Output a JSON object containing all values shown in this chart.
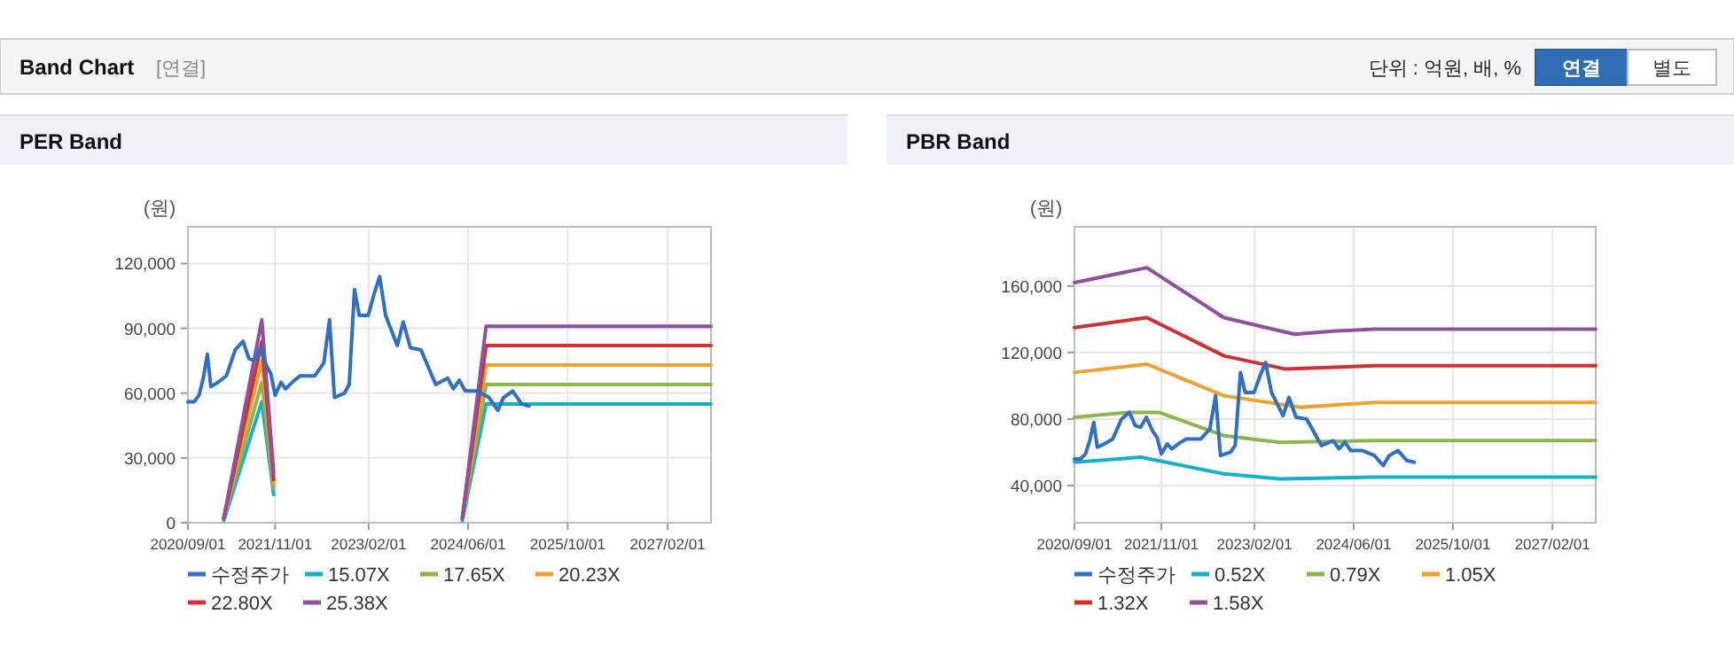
{
  "chart_data": [
    {
      "type": "line",
      "title": "PER Band",
      "ylabel": "(원)",
      "annotations": [
        "Band Chart",
        "[연결]",
        "단위 : 억원, 배, %",
        "연결",
        "별도"
      ],
      "xlim": [
        "2020-09-01",
        "2027-09-01"
      ],
      "ylim": [
        0,
        137000
      ],
      "xticks": [
        {
          "value": "2020-09-01",
          "label": "2020/09/01"
        },
        {
          "value": "2021-11-01",
          "label": "2021/11/01"
        },
        {
          "value": "2023-02-01",
          "label": "2023/02/01"
        },
        {
          "value": "2024-06-01",
          "label": "2024/06/01"
        },
        {
          "value": "2025-10-01",
          "label": "2025/10/01"
        },
        {
          "value": "2027-02-01",
          "label": "2027/02/01"
        }
      ],
      "yticks": [
        0,
        {
          "value": 30000,
          "label": "30,000"
        },
        {
          "value": 60000,
          "label": "60,000"
        },
        {
          "value": 90000,
          "label": "90,000"
        },
        {
          "value": 120000,
          "label": "120,000"
        }
      ],
      "grid": true,
      "legend": "bottom",
      "marker": "none",
      "line_style": "solid",
      "series": [
        {
          "name": "수정주가",
          "color": "#2f6fc6",
          "x": [
            "2020-09-01",
            "2020-10-01",
            "2020-10-25",
            "2020-11-15",
            "2020-12-05",
            "2020-12-22",
            "2021-01-26",
            "2021-03-08",
            "2021-04-20",
            "2021-05-28",
            "2021-06-26",
            "2021-07-22",
            "2021-08-20",
            "2021-09-18",
            "2021-10-11",
            "2021-11-01",
            "2021-11-30",
            "2021-12-22",
            "2022-02-04",
            "2022-03-03",
            "2022-05-14",
            "2022-06-27",
            "2022-07-25",
            "2022-08-18",
            "2022-10-06",
            "2022-10-29",
            "2022-11-24",
            "2022-12-17",
            "2023-01-30",
            "2023-02-28",
            "2023-03-27",
            "2023-04-25",
            "2023-06-21",
            "2023-07-20",
            "2023-08-24",
            "2023-10-15",
            "2023-12-26",
            "2024-02-22",
            "2024-03-21",
            "2024-04-19",
            "2024-05-18",
            "2024-07-14",
            "2024-09-11",
            "2024-10-24",
            "2024-11-22",
            "2025-01-05",
            "2025-02-17",
            "2025-03-25"
          ],
          "values": [
            56000,
            56000,
            59000,
            67000,
            78000,
            63000,
            65000,
            68000,
            80000,
            84000,
            76000,
            75000,
            81000,
            73000,
            69000,
            59000,
            65000,
            62000,
            66000,
            68000,
            68000,
            74000,
            94000,
            58000,
            60000,
            64000,
            108000,
            96000,
            96000,
            106000,
            114000,
            96000,
            82000,
            93000,
            81000,
            80000,
            64000,
            67000,
            62000,
            66000,
            61000,
            61000,
            58000,
            52000,
            58000,
            61000,
            55000,
            54000
          ]
        },
        {
          "name": "15.07X",
          "color": "#17b0c8",
          "x": [
            "2021-02-23",
            "2021-08-28",
            "2021-10-25"
          ],
          "values": [
            1000,
            56000,
            13000
          ]
        },
        {
          "name": "17.65X",
          "color": "#8cb550",
          "x": [
            "2021-02-23",
            "2021-08-28",
            "2021-10-25"
          ],
          "values": [
            2000,
            65000,
            16000
          ]
        },
        {
          "name": "20.23X",
          "color": "#f0a030",
          "x": [
            "2021-02-23",
            "2021-08-28",
            "2021-10-25"
          ],
          "values": [
            2000,
            75000,
            18000
          ]
        },
        {
          "name": "22.80X",
          "color": "#d03030",
          "x": [
            "2021-02-23",
            "2021-08-28",
            "2021-10-25"
          ],
          "values": [
            2000,
            84000,
            20000
          ]
        },
        {
          "name": "25.38X",
          "color": "#9050a0",
          "x": [
            "2021-02-23",
            "2021-08-28",
            "2021-10-25"
          ],
          "values": [
            2000,
            94000,
            23000
          ]
        },
        {
          "color": "#17b0c8",
          "x": [
            "2024-05-04",
            "2024-08-28",
            "2027-09-01"
          ],
          "values": [
            1000,
            55000,
            55000
          ]
        },
        {
          "color": "#8cb550",
          "x": [
            "2024-05-04",
            "2024-08-28",
            "2027-09-01"
          ],
          "values": [
            2000,
            64000,
            64000
          ]
        },
        {
          "color": "#f0a030",
          "x": [
            "2024-05-04",
            "2024-08-28",
            "2027-09-01"
          ],
          "values": [
            2000,
            73000,
            73000
          ]
        },
        {
          "color": "#d03030",
          "x": [
            "2024-05-04",
            "2024-08-28",
            "2027-09-01"
          ],
          "values": [
            2000,
            82000,
            82000
          ]
        },
        {
          "color": "#9050a0",
          "x": [
            "2024-05-04",
            "2024-08-28",
            "2027-09-01"
          ],
          "values": [
            2000,
            91000,
            91000
          ]
        }
      ]
    },
    {
      "type": "line",
      "title": "PBR Band",
      "ylabel": "(원)",
      "xlim": [
        "2020-09-01",
        "2027-09-01"
      ],
      "ylim": [
        17600,
        195600
      ],
      "xticks": [
        {
          "value": "2020-09-01",
          "label": "2020/09/01"
        },
        {
          "value": "2021-11-01",
          "label": "2021/11/01"
        },
        {
          "value": "2023-02-01",
          "label": "2023/02/01"
        },
        {
          "value": "2024-06-01",
          "label": "2024/06/01"
        },
        {
          "value": "2025-10-01",
          "label": "2025/10/01"
        },
        {
          "value": "2027-02-01",
          "label": "2027/02/01"
        }
      ],
      "yticks": [
        {
          "value": 40000,
          "label": "40,000"
        },
        {
          "value": 80000,
          "label": "80,000"
        },
        {
          "value": 120000,
          "label": "120,000"
        },
        {
          "value": 160000,
          "label": "160,000"
        }
      ],
      "grid": true,
      "legend": "bottom",
      "marker": "none",
      "line_style": "solid",
      "series": [
        {
          "name": "수정주가",
          "color": "#2f6fc6",
          "x": [
            "2020-09-01",
            "2020-10-01",
            "2020-10-25",
            "2020-11-15",
            "2020-12-05",
            "2020-12-22",
            "2021-01-26",
            "2021-03-08",
            "2021-04-20",
            "2021-05-28",
            "2021-06-26",
            "2021-07-22",
            "2021-08-20",
            "2021-09-18",
            "2021-10-11",
            "2021-11-01",
            "2021-11-30",
            "2021-12-22",
            "2022-02-04",
            "2022-03-03",
            "2022-05-14",
            "2022-06-27",
            "2022-07-25",
            "2022-08-18",
            "2022-10-06",
            "2022-10-29",
            "2022-11-24",
            "2022-12-17",
            "2023-01-30",
            "2023-02-28",
            "2023-03-27",
            "2023-04-25",
            "2023-06-21",
            "2023-07-20",
            "2023-08-24",
            "2023-10-15",
            "2023-12-26",
            "2024-02-22",
            "2024-03-21",
            "2024-04-19",
            "2024-05-18",
            "2024-07-14",
            "2024-09-11",
            "2024-10-24",
            "2024-11-22",
            "2025-01-05",
            "2025-02-17",
            "2025-03-25"
          ],
          "values": [
            56000,
            56000,
            59000,
            67000,
            78000,
            63000,
            65000,
            68000,
            80000,
            84000,
            76000,
            75000,
            81000,
            73000,
            69000,
            59000,
            65000,
            62000,
            66000,
            68000,
            68000,
            74000,
            94000,
            58000,
            60000,
            64000,
            108000,
            96000,
            96000,
            106000,
            114000,
            96000,
            82000,
            93000,
            81000,
            80000,
            64000,
            67000,
            62000,
            66000,
            61000,
            61000,
            58000,
            52000,
            58000,
            61000,
            55000,
            54000
          ]
        },
        {
          "name": "0.52X",
          "color": "#17b0c8",
          "x": [
            "2020-09-01",
            "2021-07-24",
            "2022-09-04",
            "2023-06-04",
            "2024-09-12",
            "2027-09-01"
          ],
          "values": [
            54000,
            57000,
            47000,
            44000,
            45000,
            45000
          ]
        },
        {
          "name": "0.79X",
          "color": "#8cb550",
          "x": [
            "2020-09-01",
            "2021-05-27",
            "2021-10-20",
            "2022-09-04",
            "2023-06-04",
            "2024-09-12",
            "2027-09-01"
          ],
          "values": [
            81000,
            84000,
            84000,
            70000,
            66000,
            67000,
            67000
          ]
        },
        {
          "name": "1.05X",
          "color": "#f0a030",
          "x": [
            "2020-09-01",
            "2021-08-22",
            "2022-09-04",
            "2023-09-15",
            "2024-09-12",
            "2027-09-01"
          ],
          "values": [
            108000,
            113000,
            94000,
            87000,
            90000,
            90000
          ]
        },
        {
          "name": "1.32X",
          "color": "#d03030",
          "x": [
            "2020-09-01",
            "2021-08-22",
            "2022-09-04",
            "2023-07-04",
            "2024-09-12",
            "2027-09-01"
          ],
          "values": [
            135000,
            141000,
            118000,
            110000,
            112000,
            112000
          ]
        },
        {
          "name": "1.58X",
          "color": "#9050a0",
          "x": [
            "2020-09-01",
            "2021-08-22",
            "2022-09-04",
            "2023-08-16",
            "2024-03-07",
            "2024-09-12",
            "2027-09-01"
          ],
          "values": [
            162000,
            171000,
            141000,
            131000,
            133000,
            134000,
            134000
          ]
        }
      ]
    }
  ]
}
